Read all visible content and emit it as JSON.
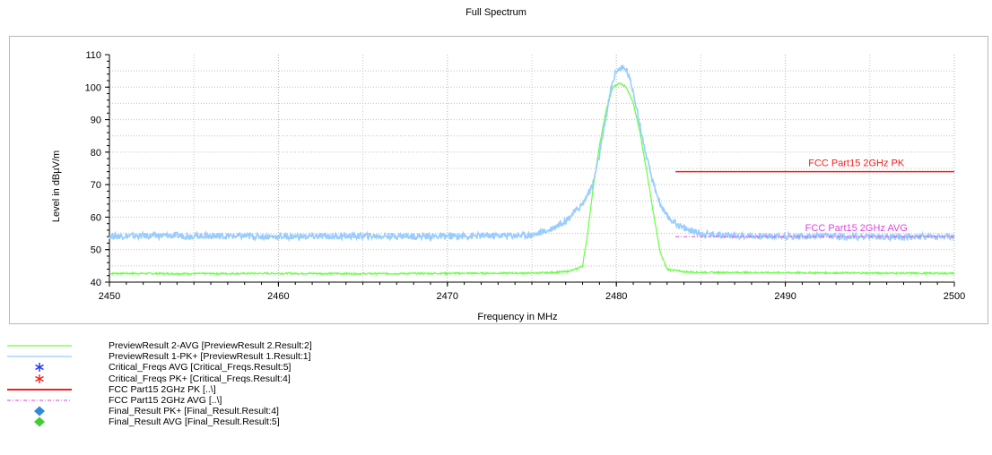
{
  "chart_data": {
    "type": "line",
    "title": "Full Spectrum",
    "xlabel": "Frequency in MHz",
    "ylabel": "Level in dBµV/m",
    "xlim": [
      2450,
      2500
    ],
    "ylim": [
      40,
      110
    ],
    "x_ticks": [
      "2450",
      "2460",
      "2470",
      "2480",
      "2490",
      "2500"
    ],
    "y_ticks": [
      "40",
      "50",
      "60",
      "70",
      "80",
      "90",
      "100",
      "110"
    ],
    "grid": true,
    "series": [
      {
        "name": "PreviewResult 2-AVG",
        "color": "#66ff44",
        "x": [
          2450,
          2455,
          2460,
          2465,
          2470,
          2475,
          2476,
          2477,
          2477.5,
          2478,
          2478.3,
          2478.6,
          2479,
          2479.4,
          2479.8,
          2480.2,
          2480.6,
          2481,
          2481.4,
          2481.8,
          2482.2,
          2482.6,
          2483,
          2484,
          2485,
          2490,
          2495,
          2500
        ],
        "y": [
          42.7,
          42.6,
          42.7,
          42.6,
          42.7,
          42.8,
          42.9,
          43.2,
          43.8,
          45,
          55,
          68,
          82,
          93,
          100,
          101.3,
          100,
          95,
          86,
          74,
          61,
          49,
          44,
          43.2,
          43,
          42.9,
          42.8,
          42.7
        ]
      },
      {
        "name": "PreviewResult 1-PK+",
        "color": "#99ccff",
        "x": [
          2450,
          2455,
          2460,
          2465,
          2470,
          2473,
          2475,
          2476,
          2477,
          2478,
          2478.6,
          2479,
          2479.4,
          2479.7,
          2480,
          2480.3,
          2480.6,
          2481,
          2481.4,
          2481.8,
          2482.2,
          2482.6,
          2483,
          2484,
          2485,
          2487,
          2490,
          2495,
          2500
        ],
        "y": [
          54.2,
          54.3,
          54,
          54.2,
          54.1,
          54.3,
          54.5,
          56,
          59,
          64,
          70,
          79,
          91,
          100,
          105.3,
          105.8,
          105.4,
          99,
          88,
          78,
          70,
          64,
          60,
          56.5,
          55,
          54.3,
          54.1,
          54,
          54
        ]
      }
    ],
    "limit_lines": [
      {
        "name": "FCC Part15 2GHz PK",
        "label": "FCC Part15 2GHz  PK",
        "x": [
          2483.5,
          2500
        ],
        "y": 74,
        "color": "#ee2222"
      },
      {
        "name": "FCC Part15 2GHz AVG",
        "label": "FCC Part15 2GHz  AVG",
        "x": [
          2483.5,
          2500
        ],
        "y": 54,
        "color": "#dd44dd"
      }
    ]
  },
  "legend": [
    {
      "label": "PreviewResult 2-AVG  [PreviewResult 2.Result:2]",
      "symbol": "line",
      "color": "#66ff44"
    },
    {
      "label": "PreviewResult 1-PK+  [PreviewResult 1.Result:1]",
      "symbol": "line",
      "color": "#99ccff"
    },
    {
      "label": "Critical_Freqs AVG  [Critical_Freqs.Result:5]",
      "symbol": "star",
      "color": "#2233ee"
    },
    {
      "label": "Critical_Freqs PK+  [Critical_Freqs.Result:4]",
      "symbol": "star",
      "color": "#ee2222"
    },
    {
      "label": "FCC Part15 2GHz  PK  [..\\]",
      "symbol": "line",
      "color": "#ee2222"
    },
    {
      "label": "FCC Part15 2GHz  AVG  [..\\]",
      "symbol": "dashdot",
      "color": "#dd44dd"
    },
    {
      "label": "Final_Result PK+  [Final_Result.Result:4]",
      "symbol": "diamond",
      "color": "#3388dd"
    },
    {
      "label": "Final_Result AVG  [Final_Result.Result:5]",
      "symbol": "diamond",
      "color": "#44cc33"
    }
  ]
}
